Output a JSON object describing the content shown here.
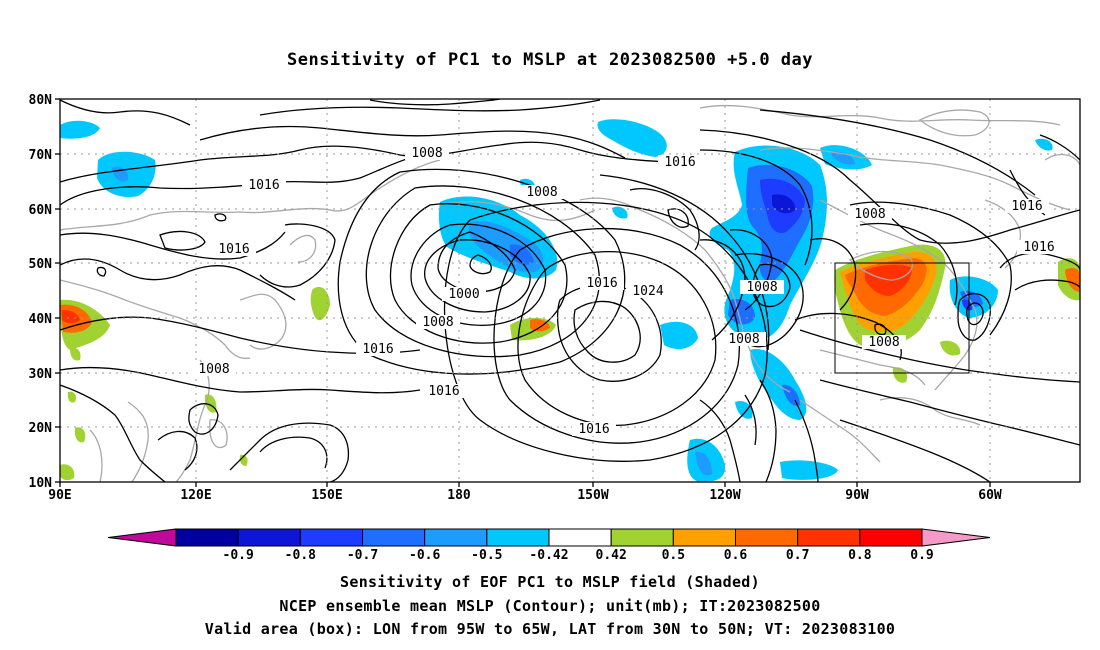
{
  "title": "Sensitivity of PC1 to MSLP at 2023082500 +5.0 day",
  "map": {
    "lat_labels": [
      "80N",
      "70N",
      "60N",
      "50N",
      "40N",
      "30N",
      "20N",
      "10N"
    ],
    "lon_labels": [
      "90E",
      "120E",
      "150E",
      "180",
      "150W",
      "120W",
      "90W",
      "60W"
    ],
    "lon_range": [
      "90E",
      "45W"
    ],
    "lat_range": [
      "10N",
      "80N"
    ],
    "valid_box": {
      "lon": [
        "95W",
        "65W"
      ],
      "lat": [
        "30N",
        "50N"
      ]
    },
    "contour_labels": [
      "1008",
      "1016",
      "1008",
      "1016",
      "1008",
      "1016",
      "1000",
      "1008",
      "1016",
      "1016",
      "1024",
      "1008",
      "1008",
      "1016",
      "1008",
      "1016",
      "1016",
      "1016",
      "1008",
      "1016",
      "1008"
    ]
  },
  "colorbar": {
    "labels": [
      "-0.9",
      "-0.8",
      "-0.7",
      "-0.6",
      "-0.5",
      "-0.42",
      "0.42",
      "0.5",
      "0.6",
      "0.7",
      "0.8",
      "0.9"
    ],
    "colors": [
      "#c0099b",
      "#0000a0",
      "#0b16d6",
      "#1e3cff",
      "#1e6eff",
      "#1e9bff",
      "#00c8ff",
      "#ffffff",
      "#a0d232",
      "#ffa000",
      "#ff6a00",
      "#ff3200",
      "#ff0000",
      "#f59ac8"
    ]
  },
  "captions": {
    "line1": "Sensitivity of EOF PC1 to MSLP field (Shaded)",
    "line2": "NCEP ensemble mean MSLP (Contour); unit(mb); IT:2023082500",
    "line3": "Valid area (box): LON from 95W to 65W, LAT from 30N to 50N; VT: 2023083100"
  }
}
